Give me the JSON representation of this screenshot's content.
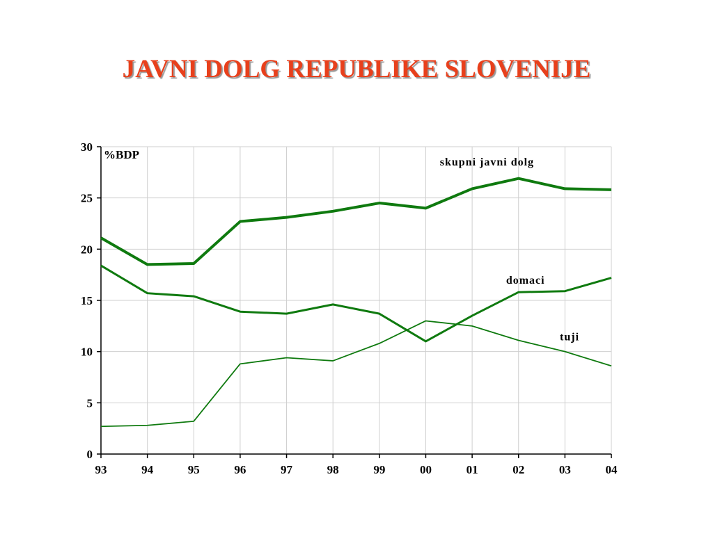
{
  "slide": {
    "title": "JAVNI DOLG REPUBLIKE SLOVENIJE",
    "title_color": "#e8401c"
  },
  "chart_data": {
    "type": "line",
    "title": "JAVNI DOLG REPUBLIKE SLOVENIJE",
    "ylabel": "%BDP",
    "xlabel": "",
    "categories": [
      "93",
      "94",
      "95",
      "96",
      "97",
      "98",
      "99",
      "00",
      "01",
      "02",
      "03",
      "04"
    ],
    "ylim": [
      0,
      30
    ],
    "yticks": [
      0,
      5,
      10,
      15,
      20,
      25,
      30
    ],
    "grid": true,
    "line_color": "#0f7a0f",
    "series": [
      {
        "name": "skupni javni dolg",
        "values": [
          21.1,
          18.5,
          18.6,
          22.7,
          23.1,
          23.7,
          24.5,
          24.0,
          25.9,
          26.9,
          25.9,
          25.8
        ]
      },
      {
        "name": "domaci",
        "values": [
          18.4,
          15.7,
          15.4,
          13.9,
          13.7,
          14.6,
          13.7,
          11.0,
          13.5,
          15.8,
          15.9,
          17.2
        ]
      },
      {
        "name": "tuji",
        "values": [
          2.7,
          2.8,
          3.2,
          8.8,
          9.4,
          9.1,
          10.8,
          13.0,
          12.5,
          11.1,
          10.0,
          8.6
        ]
      }
    ]
  }
}
